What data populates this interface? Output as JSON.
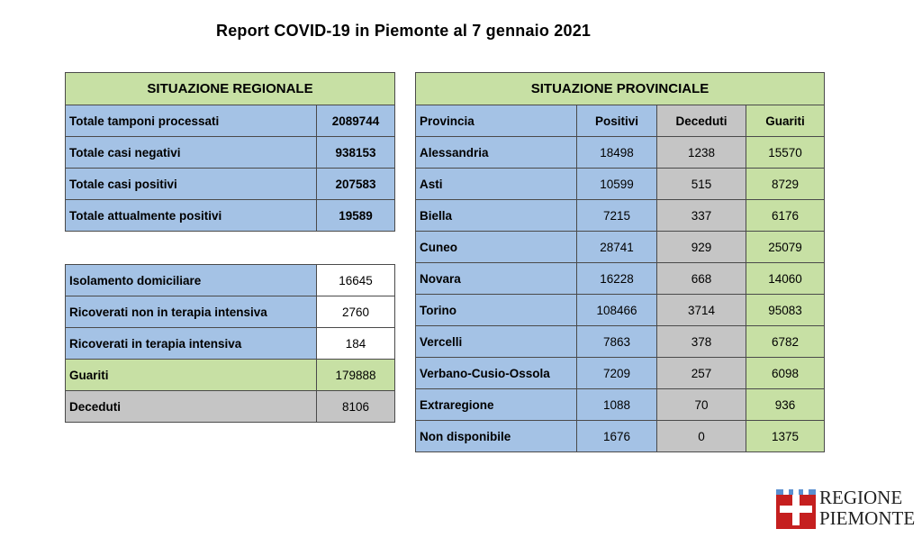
{
  "title": "Report COVID-19 in Piemonte al 7 gennaio 2021",
  "regional": {
    "header": "SITUAZIONE REGIONALE",
    "top_rows": [
      {
        "label": "Totale tamponi processati",
        "value": "2089744"
      },
      {
        "label": "Totale casi negativi",
        "value": "938153"
      },
      {
        "label": "Totale casi positivi",
        "value": "207583"
      },
      {
        "label": "Totale attualmente positivi",
        "value": "19589"
      }
    ],
    "bottom_rows": [
      {
        "label": "Isolamento domiciliare",
        "value": "16645"
      },
      {
        "label": "Ricoverati non in terapia intensiva",
        "value": "2760"
      },
      {
        "label": "Ricoverati in terapia intensiva",
        "value": "184"
      },
      {
        "label": "Guariti",
        "value": "179888"
      },
      {
        "label": "Deceduti",
        "value": "8106"
      }
    ]
  },
  "provincial": {
    "header": "SITUAZIONE PROVINCIALE",
    "columns": [
      "Provincia",
      "Positivi",
      "Deceduti",
      "Guariti"
    ],
    "rows": [
      {
        "provincia": "Alessandria",
        "positivi": "18498",
        "deceduti": "1238",
        "guariti": "15570"
      },
      {
        "provincia": "Asti",
        "positivi": "10599",
        "deceduti": "515",
        "guariti": "8729"
      },
      {
        "provincia": "Biella",
        "positivi": "7215",
        "deceduti": "337",
        "guariti": "6176"
      },
      {
        "provincia": "Cuneo",
        "positivi": "28741",
        "deceduti": "929",
        "guariti": "25079"
      },
      {
        "provincia": "Novara",
        "positivi": "16228",
        "deceduti": "668",
        "guariti": "14060"
      },
      {
        "provincia": "Torino",
        "positivi": "108466",
        "deceduti": "3714",
        "guariti": "95083"
      },
      {
        "provincia": "Vercelli",
        "positivi": "7863",
        "deceduti": "378",
        "guariti": "6782"
      },
      {
        "provincia": "Verbano-Cusio-Ossola",
        "positivi": "7209",
        "deceduti": "257",
        "guariti": "6098"
      },
      {
        "provincia": "Extraregione",
        "positivi": "1088",
        "deceduti": "70",
        "guariti": "936"
      },
      {
        "provincia": "Non disponibile",
        "positivi": "1676",
        "deceduti": "0",
        "guariti": "1375"
      }
    ]
  },
  "logo": {
    "line1": "REGIONE",
    "line2": "PIEMONTE",
    "color": "#c51f1f"
  }
}
